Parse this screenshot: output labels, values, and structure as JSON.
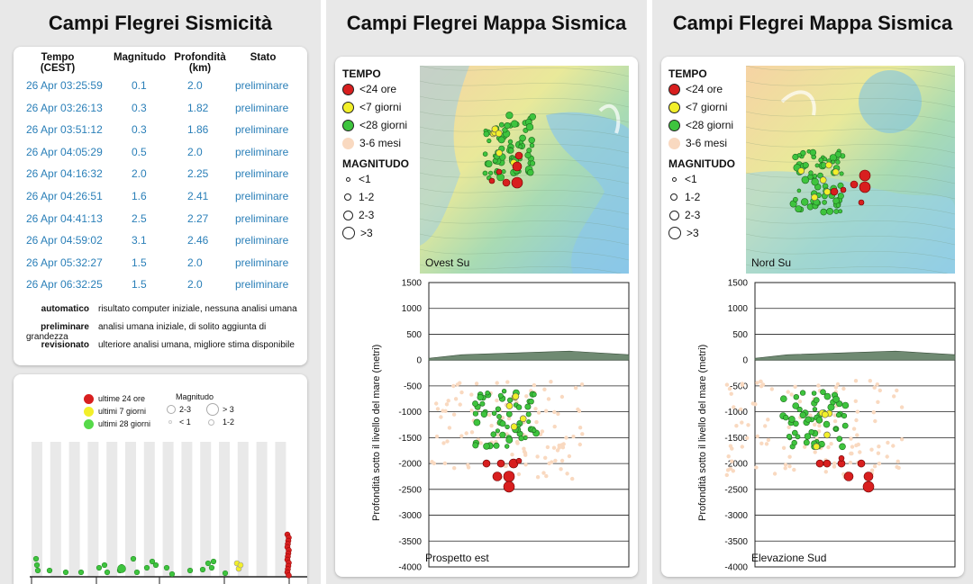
{
  "panel1": {
    "title": "Campi Flegrei Sismicità",
    "columns": [
      "Tempo (CEST)",
      "Magnitudo",
      "Profondità (km)",
      "Stato"
    ],
    "rows": [
      {
        "time": "26 Apr 03:25:59",
        "mag": "0.1",
        "depth": "2.0",
        "status": "preliminare"
      },
      {
        "time": "26 Apr 03:26:13",
        "mag": "0.3",
        "depth": "1.82",
        "status": "preliminare"
      },
      {
        "time": "26 Apr 03:51:12",
        "mag": "0.3",
        "depth": "1.86",
        "status": "preliminare"
      },
      {
        "time": "26 Apr 04:05:29",
        "mag": "0.5",
        "depth": "2.0",
        "status": "preliminare"
      },
      {
        "time": "26 Apr 04:16:32",
        "mag": "2.0",
        "depth": "2.25",
        "status": "preliminare"
      },
      {
        "time": "26 Apr 04:26:51",
        "mag": "1.6",
        "depth": "2.41",
        "status": "preliminare"
      },
      {
        "time": "26 Apr 04:41:13",
        "mag": "2.5",
        "depth": "2.27",
        "status": "preliminare"
      },
      {
        "time": "26 Apr 04:59:02",
        "mag": "3.1",
        "depth": "2.46",
        "status": "preliminare"
      },
      {
        "time": "26 Apr 05:32:27",
        "mag": "1.5",
        "depth": "2.0",
        "status": "preliminare"
      },
      {
        "time": "26 Apr 06:32:25",
        "mag": "1.5",
        "depth": "2.0",
        "status": "preliminare"
      }
    ],
    "definitions": [
      {
        "term": "automatico",
        "desc": "risultato computer iniziale, nessuna analisi umana"
      },
      {
        "term": "preliminare",
        "desc": "analisi umana iniziale, di solito aggiunta di grandezza"
      },
      {
        "term": "revisionato",
        "desc": "ulteriore analisi umana, migliore stima disponibile"
      }
    ],
    "timeline_legend": {
      "time_items": [
        "ultime 24 ore",
        "ultimi 7 giorni",
        "ultimi 28 giorni"
      ],
      "mag_title": "Magnitudo",
      "mag_items": [
        "2-3",
        "> 3",
        "< 1",
        "1-2"
      ]
    }
  },
  "panel2": {
    "title": "Campi Flegrei Mappa Sismica",
    "map_label": "Ovest Su",
    "section_label": "Prospetto est"
  },
  "panel3": {
    "title": "Campi Flegrei Mappa Sismica",
    "map_label": "Nord Su",
    "section_label": "Elevazione Sud"
  },
  "legend": {
    "time_title": "TEMPO",
    "time_items": [
      "<24 ore",
      "<7 giorni",
      "<28 giorni",
      "3-6 mesi"
    ],
    "mag_title": "MAGNITUDO",
    "mag_items": [
      "<1",
      "1-2",
      "2-3",
      ">3"
    ]
  },
  "colors": {
    "red": "#d81f1f",
    "yellow": "#f2ef2a",
    "green": "#3ec43e",
    "peach": "#f9d9c0",
    "link": "#2a7fb8"
  },
  "depth_axis": {
    "label": "Profondità sotto il livello del mare (metri)",
    "ticks": [
      "1500",
      "1000",
      "500",
      "0",
      "-500",
      "-1000",
      "-1500",
      "-2000",
      "-2500",
      "-3000",
      "-3500",
      "-4000"
    ]
  }
}
